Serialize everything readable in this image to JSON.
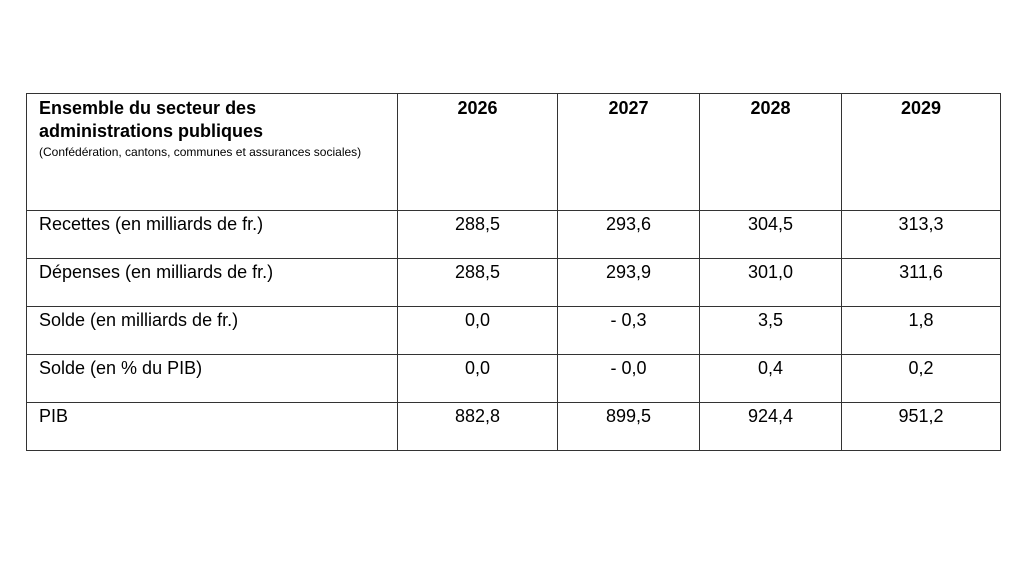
{
  "table": {
    "header": {
      "title": "Ensemble du secteur des administrations publiques",
      "subtitle": "(Confédération, cantons, communes et assurances sociales)",
      "years": [
        "2026",
        "2027",
        "2028",
        "2029"
      ]
    },
    "rows": [
      {
        "label": "Recettes (en milliards de fr.)",
        "values": [
          "288,5",
          "293,6",
          "304,5",
          "313,3"
        ]
      },
      {
        "label": "Dépenses (en milliards de fr.)",
        "values": [
          "288,5",
          "293,9",
          "301,0",
          "311,6"
        ]
      },
      {
        "label": "Solde (en milliards de fr.)",
        "values": [
          "0,0",
          "- 0,3",
          "3,5",
          "1,8"
        ]
      },
      {
        "label": "Solde (en % du PIB)",
        "values": [
          "0,0",
          "- 0,0",
          "0,4",
          "0,2"
        ]
      },
      {
        "label": "PIB",
        "values": [
          "882,8",
          "899,5",
          "924,4",
          "951,2"
        ]
      }
    ]
  }
}
